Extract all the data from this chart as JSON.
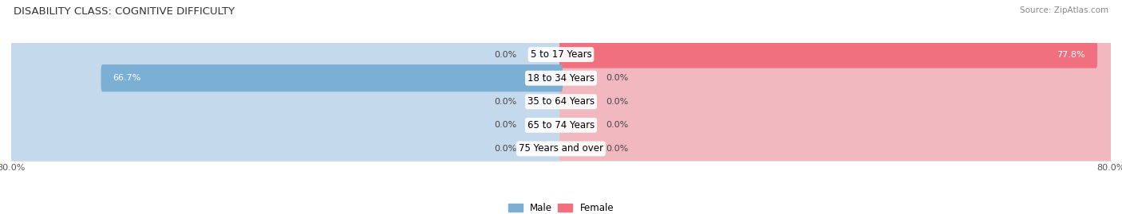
{
  "title": "DISABILITY CLASS: COGNITIVE DIFFICULTY",
  "source": "Source: ZipAtlas.com",
  "categories": [
    "5 to 17 Years",
    "18 to 34 Years",
    "35 to 64 Years",
    "65 to 74 Years",
    "75 Years and over"
  ],
  "male_values": [
    0.0,
    66.7,
    0.0,
    0.0,
    0.0
  ],
  "female_values": [
    77.8,
    0.0,
    0.0,
    0.0,
    0.0
  ],
  "xlim": 80.0,
  "male_color": "#7bafd4",
  "female_color": "#f07080",
  "male_color_light": "#c5d9ed",
  "female_color_light": "#f2b8c0",
  "row_bg_color": "#f0f2f5",
  "row_sep_color": "#ffffff",
  "bar_height": 0.68,
  "label_fontsize": 8.0,
  "title_fontsize": 9.5,
  "source_fontsize": 7.5,
  "axis_label_fontsize": 8.0,
  "legend_fontsize": 8.5,
  "x_left_label": "80.0%",
  "x_right_label": "80.0%",
  "cat_label_fontsize": 8.5
}
